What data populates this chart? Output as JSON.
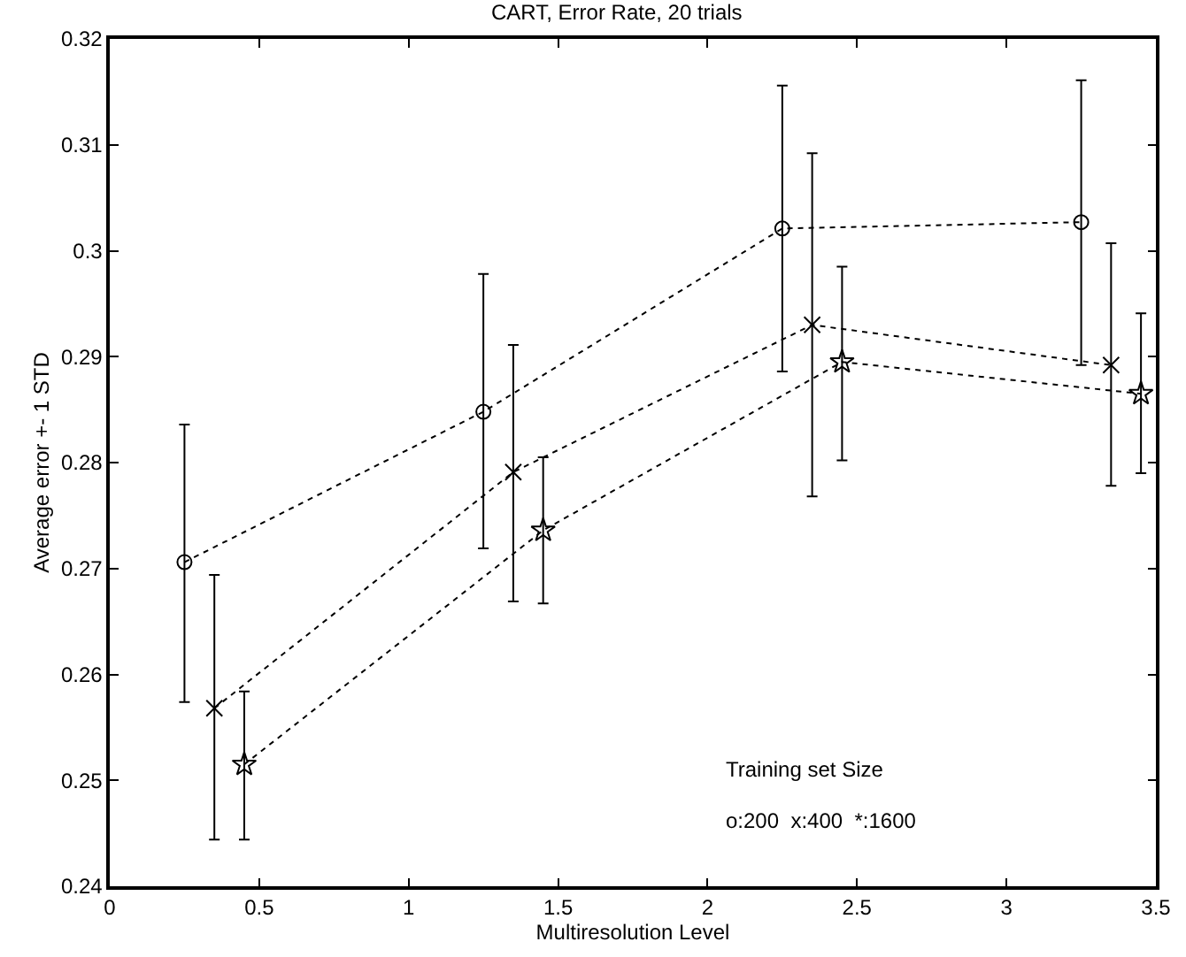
{
  "chart_data": {
    "type": "line",
    "title": "CART, Error Rate, 20 trials",
    "xlabel": "Multiresolution Level",
    "ylabel": "Average error +- 1 STD",
    "xlim": [
      0,
      3.5
    ],
    "xticks": [
      0,
      0.5,
      1,
      1.5,
      2,
      2.5,
      3,
      3.5
    ],
    "ylim": [
      0.24,
      0.32
    ],
    "yticks": [
      0.24,
      0.25,
      0.26,
      0.27,
      0.28,
      0.29,
      0.3,
      0.31,
      0.32
    ],
    "line_style": "dotted",
    "annotations": [
      "Training set Size",
      "o:200  x:400  *:1600"
    ],
    "series": [
      {
        "color": "#000000",
        "marker": "circle",
        "x": [
          0.25,
          1.25,
          2.25,
          3.25
        ],
        "values": [
          0.2706,
          0.2848,
          0.3021,
          0.3027
        ],
        "errors": [
          [
            0.2574,
            0.2836
          ],
          [
            0.2719,
            0.2978
          ],
          [
            0.2886,
            0.3156
          ],
          [
            0.2892,
            0.3161
          ]
        ]
      },
      {
        "color": "#000000",
        "marker": "cross",
        "x": [
          0.35,
          1.35,
          2.35,
          3.35
        ],
        "values": [
          0.2568,
          0.2791,
          0.293,
          0.2892
        ],
        "errors": [
          [
            0.2444,
            0.2694
          ],
          [
            0.2669,
            0.2911
          ],
          [
            0.2768,
            0.3092
          ],
          [
            0.2778,
            0.3007
          ]
        ]
      },
      {
        "color": "#000000",
        "marker": "star",
        "x": [
          0.45,
          1.45,
          2.45,
          3.45
        ],
        "values": [
          0.2515,
          0.2736,
          0.2895,
          0.2865
        ],
        "errors": [
          [
            0.2444,
            0.2584
          ],
          [
            0.2667,
            0.2805
          ],
          [
            0.2802,
            0.2985
          ],
          [
            0.279,
            0.2941
          ]
        ]
      }
    ]
  }
}
